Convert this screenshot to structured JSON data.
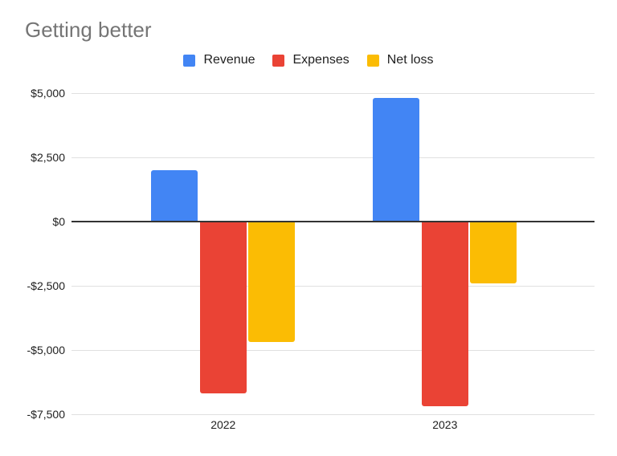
{
  "chart_title": "Getting better",
  "colors": {
    "revenue": "#4285F4",
    "expenses": "#EA4335",
    "net_loss": "#FBBC04",
    "gridline": "#e0e0e0",
    "zero_line": "#333333",
    "axis_text": "#212121",
    "title_text": "#757575",
    "background": "#ffffff"
  },
  "chart_data": {
    "type": "bar",
    "title": "Getting better",
    "categories": [
      "2022",
      "2023"
    ],
    "series": [
      {
        "name": "Revenue",
        "color": "#4285F4",
        "values": [
          2000,
          4800
        ]
      },
      {
        "name": "Expenses",
        "color": "#EA4335",
        "values": [
          -6700,
          -7200
        ]
      },
      {
        "name": "Net loss",
        "color": "#FBBC04",
        "values": [
          -4700,
          -2400
        ]
      }
    ],
    "xlabel": "",
    "ylabel": "",
    "ylim": [
      -7500,
      5000
    ],
    "y_ticks": [
      {
        "value": 5000,
        "label": "$5,000"
      },
      {
        "value": 2500,
        "label": "$2,500"
      },
      {
        "value": 0,
        "label": "$0"
      },
      {
        "value": -2500,
        "label": "-$2,500"
      },
      {
        "value": -5000,
        "label": "-$5,000"
      },
      {
        "value": -7500,
        "label": "-$7,500"
      }
    ],
    "grid": true,
    "legend_position": "top",
    "value_axis_format": "currency"
  }
}
